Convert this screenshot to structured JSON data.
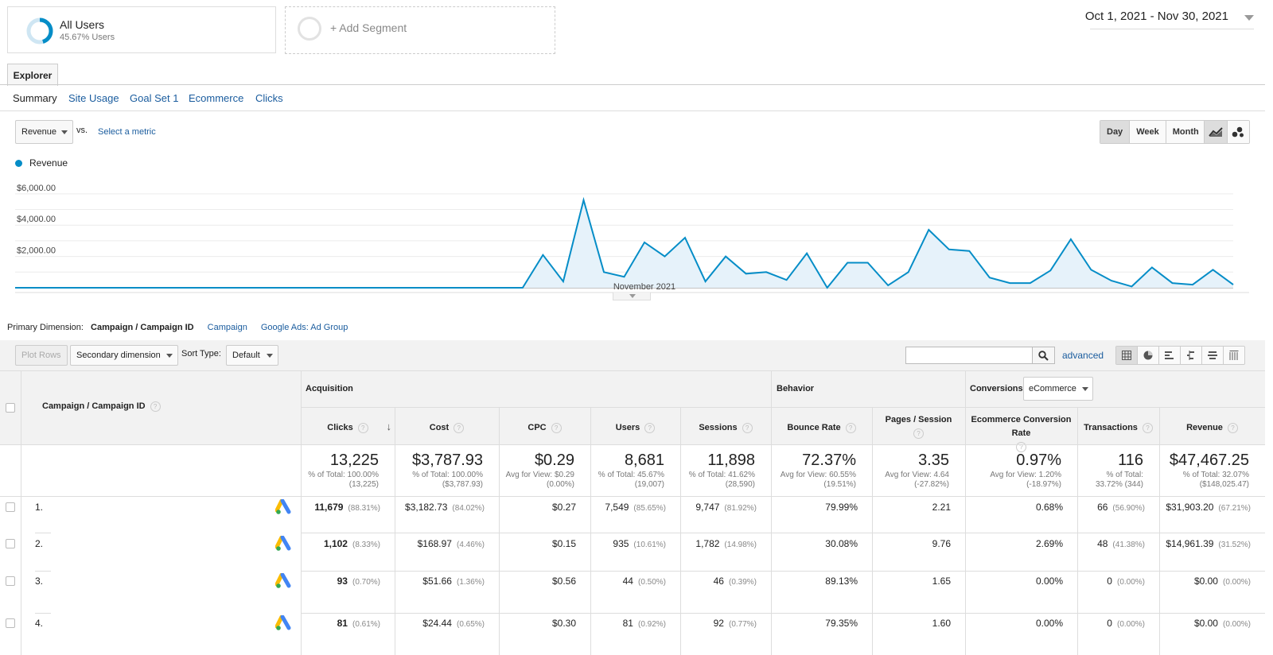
{
  "segments": {
    "all_users": {
      "title": "All Users",
      "subtitle": "45.67% Users"
    },
    "add_label": "+ Add Segment"
  },
  "date_range": "Oct 1, 2021 - Nov 30, 2021",
  "tabs": {
    "explorer": "Explorer"
  },
  "subtabs": [
    "Summary",
    "Site Usage",
    "Goal Set 1",
    "Ecommerce",
    "Clicks"
  ],
  "metric": {
    "selected": "Revenue",
    "vs": "vs.",
    "select_metric": "Select a metric"
  },
  "period": [
    "Day",
    "Week",
    "Month"
  ],
  "legend": {
    "series": "Revenue",
    "color": "#058dc7"
  },
  "chart_data": {
    "type": "area",
    "title": "",
    "series": [
      {
        "name": "Revenue",
        "values": [
          0,
          0,
          0,
          0,
          0,
          0,
          0,
          0,
          0,
          0,
          0,
          0,
          0,
          0,
          0,
          0,
          0,
          0,
          0,
          0,
          0,
          0,
          0,
          0,
          0,
          0,
          2100,
          400,
          5600,
          1000,
          700,
          2900,
          2000,
          3200,
          400,
          2000,
          900,
          1000,
          500,
          2200,
          0,
          1600,
          1600,
          150,
          1000,
          3700,
          2450,
          2350,
          650,
          300,
          300,
          1100,
          3100,
          1150,
          450,
          80,
          1300,
          300,
          200,
          1150,
          200
        ]
      }
    ],
    "x_label": "November 2021",
    "y_ticks": [
      "$6,000.00",
      "$4,000.00",
      "$2,000.00"
    ],
    "ylim": [
      0,
      6000
    ],
    "grid": true
  },
  "dimensions": {
    "label": "Primary Dimension:",
    "active": "Campaign / Campaign ID",
    "options": [
      "Campaign",
      "Google Ads: Ad Group"
    ]
  },
  "toolbar": {
    "plot_rows": "Plot Rows",
    "secondary": "Secondary dimension",
    "sort_label": "Sort Type:",
    "sort_value": "Default",
    "advanced": "advanced"
  },
  "table": {
    "dimension_header": "Campaign / Campaign ID",
    "groups": {
      "acquisition": "Acquisition",
      "behavior": "Behavior",
      "conversions": "Conversions",
      "conversions_select": "eCommerce"
    },
    "columns": [
      "Clicks",
      "Cost",
      "CPC",
      "Users",
      "Sessions",
      "Bounce Rate",
      "Pages / Session",
      "Ecommerce Conversion Rate",
      "Transactions",
      "Revenue"
    ],
    "totals": [
      {
        "value": "13,225",
        "sub1": "% of Total: 100.00%",
        "sub2": "(13,225)"
      },
      {
        "value": "$3,787.93",
        "sub1": "% of Total: 100.00%",
        "sub2": "($3,787.93)"
      },
      {
        "value": "$0.29",
        "sub1": "Avg for View: $0.29",
        "sub2": "(0.00%)"
      },
      {
        "value": "8,681",
        "sub1": "% of Total: 45.67%",
        "sub2": "(19,007)"
      },
      {
        "value": "11,898",
        "sub1": "% of Total: 41.62%",
        "sub2": "(28,590)"
      },
      {
        "value": "72.37%",
        "sub1": "Avg for View: 60.55%",
        "sub2": "(19.51%)"
      },
      {
        "value": "3.35",
        "sub1": "Avg for View: 4.64",
        "sub2": "(-27.82%)"
      },
      {
        "value": "0.97%",
        "sub1": "Avg for View: 1.20%",
        "sub2": "(-18.97%)"
      },
      {
        "value": "116",
        "sub1": "% of Total:",
        "sub2": "33.72% (344)"
      },
      {
        "value": "$47,467.25",
        "sub1": "% of Total: 32.07%",
        "sub2": "($148,025.47)"
      }
    ],
    "rows": [
      {
        "num": "1.",
        "cells": [
          [
            "11,679",
            "(88.31%)"
          ],
          [
            "$3,182.73",
            "(84.02%)"
          ],
          [
            "$0.27",
            ""
          ],
          [
            "7,549",
            "(85.65%)"
          ],
          [
            "9,747",
            "(81.92%)"
          ],
          [
            "79.99%",
            ""
          ],
          [
            "2.21",
            ""
          ],
          [
            "0.68%",
            ""
          ],
          [
            "66",
            "(56.90%)"
          ],
          [
            "$31,903.20",
            "(67.21%)"
          ]
        ]
      },
      {
        "num": "2.",
        "cells": [
          [
            "1,102",
            "(8.33%)"
          ],
          [
            "$168.97",
            "(4.46%)"
          ],
          [
            "$0.15",
            ""
          ],
          [
            "935",
            "(10.61%)"
          ],
          [
            "1,782",
            "(14.98%)"
          ],
          [
            "30.08%",
            ""
          ],
          [
            "9.76",
            ""
          ],
          [
            "2.69%",
            ""
          ],
          [
            "48",
            "(41.38%)"
          ],
          [
            "$14,961.39",
            "(31.52%)"
          ]
        ]
      },
      {
        "num": "3.",
        "cells": [
          [
            "93",
            "(0.70%)"
          ],
          [
            "$51.66",
            "(1.36%)"
          ],
          [
            "$0.56",
            ""
          ],
          [
            "44",
            "(0.50%)"
          ],
          [
            "46",
            "(0.39%)"
          ],
          [
            "89.13%",
            ""
          ],
          [
            "1.65",
            ""
          ],
          [
            "0.00%",
            ""
          ],
          [
            "0",
            "(0.00%)"
          ],
          [
            "$0.00",
            "(0.00%)"
          ]
        ]
      },
      {
        "num": "4.",
        "cells": [
          [
            "81",
            "(0.61%)"
          ],
          [
            "$24.44",
            "(0.65%)"
          ],
          [
            "$0.30",
            ""
          ],
          [
            "81",
            "(0.92%)"
          ],
          [
            "92",
            "(0.77%)"
          ],
          [
            "79.35%",
            ""
          ],
          [
            "1.60",
            ""
          ],
          [
            "0.00%",
            ""
          ],
          [
            "0",
            "(0.00%)"
          ],
          [
            "$0.00",
            "(0.00%)"
          ]
        ]
      }
    ]
  }
}
